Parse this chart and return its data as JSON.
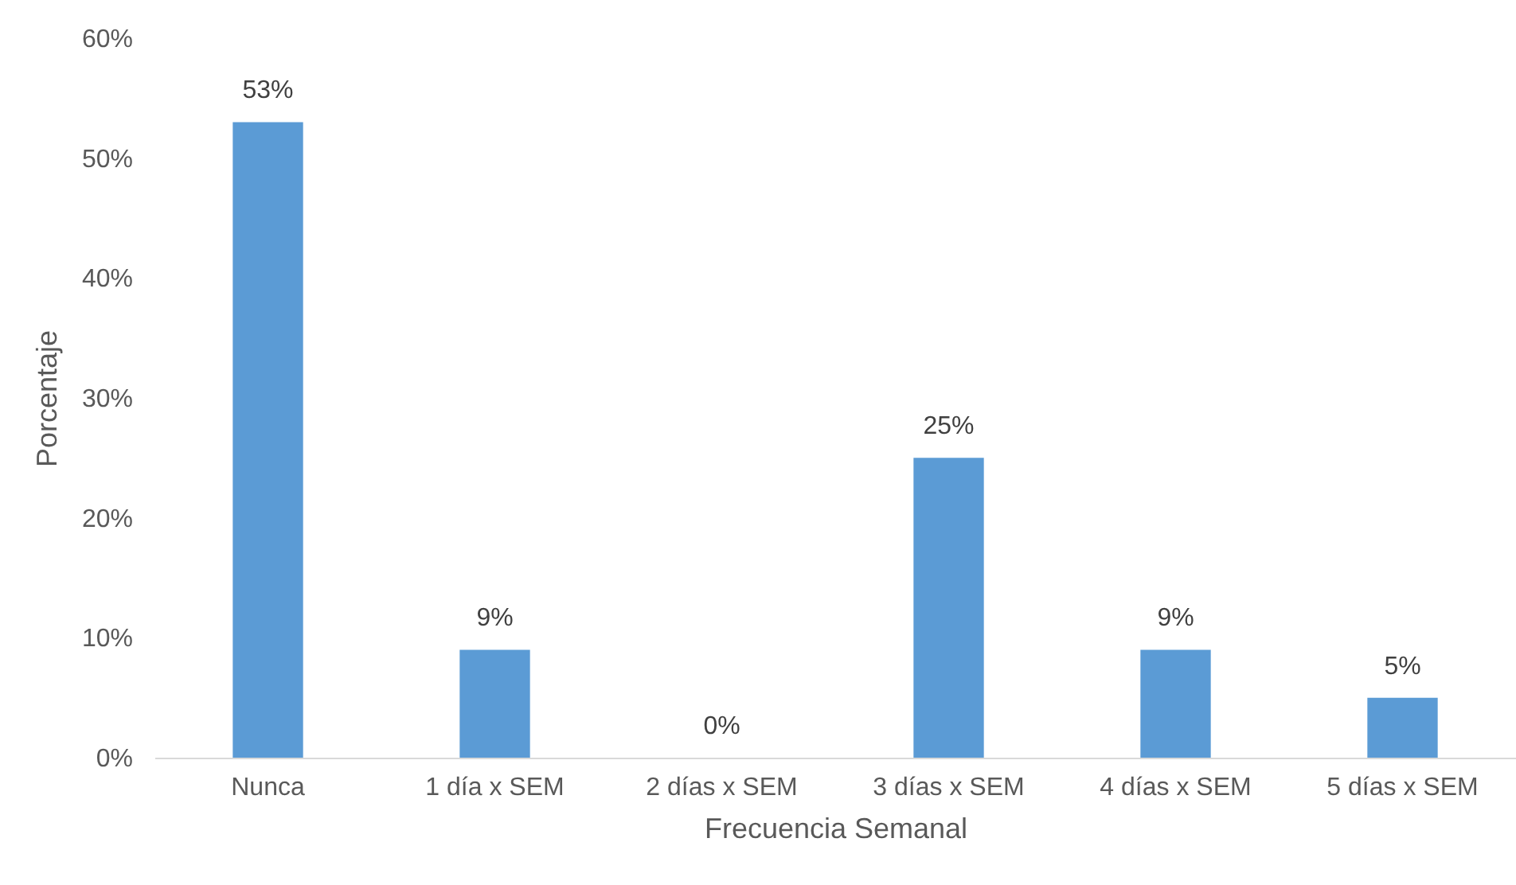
{
  "chart_data": {
    "type": "bar",
    "xlabel": "Frecuencia Semanal",
    "ylabel": "Porcentaje",
    "categories": [
      "Nunca",
      "1 día x SEM",
      "2 días x SEM",
      "3 días x SEM",
      "4 días x SEM",
      "5 días x SEM"
    ],
    "values": [
      53,
      9,
      0,
      25,
      9,
      5
    ],
    "value_labels": [
      "53%",
      "9%",
      "0%",
      "25%",
      "9%",
      "5%"
    ],
    "color": "#5b9bd5",
    "ylim": [
      0,
      60
    ],
    "yticks": [
      {
        "value": 0,
        "label": "0%"
      },
      {
        "value": 10,
        "label": "10%"
      },
      {
        "value": 20,
        "label": "20%"
      },
      {
        "value": 30,
        "label": "30%"
      },
      {
        "value": 40,
        "label": "40%"
      },
      {
        "value": 50,
        "label": "50%"
      },
      {
        "value": 60,
        "label": "60%"
      }
    ],
    "grid": false
  }
}
